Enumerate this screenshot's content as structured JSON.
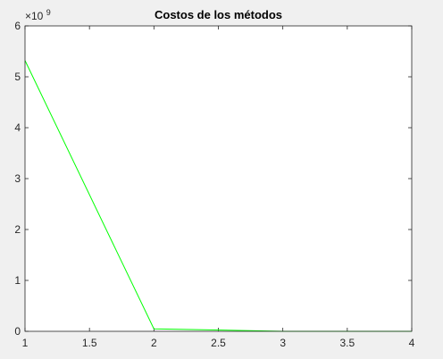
{
  "chart_data": {
    "type": "line",
    "title": "Costos de los métodos",
    "xlabel": "",
    "ylabel": "",
    "x": [
      1,
      2,
      3,
      4
    ],
    "series": [
      {
        "values": [
          5320000000,
          48000000,
          1000000,
          200000
        ],
        "color": "#00ff00"
      }
    ],
    "xlim": [
      1,
      4
    ],
    "ylim": [
      0,
      6000000000
    ],
    "xticks": [
      1,
      1.5,
      2,
      2.5,
      3,
      3.5,
      4
    ],
    "xtick_labels": [
      "1",
      "1.5",
      "2",
      "2.5",
      "3",
      "3.5",
      "4"
    ],
    "yticks": [
      0,
      1000000000,
      2000000000,
      3000000000,
      4000000000,
      5000000000,
      6000000000
    ],
    "ytick_labels": [
      "0",
      "1",
      "2",
      "3",
      "4",
      "5",
      "6"
    ],
    "exponent_label": {
      "base": "×10",
      "power": "9"
    },
    "grid": false,
    "legend": "none"
  }
}
